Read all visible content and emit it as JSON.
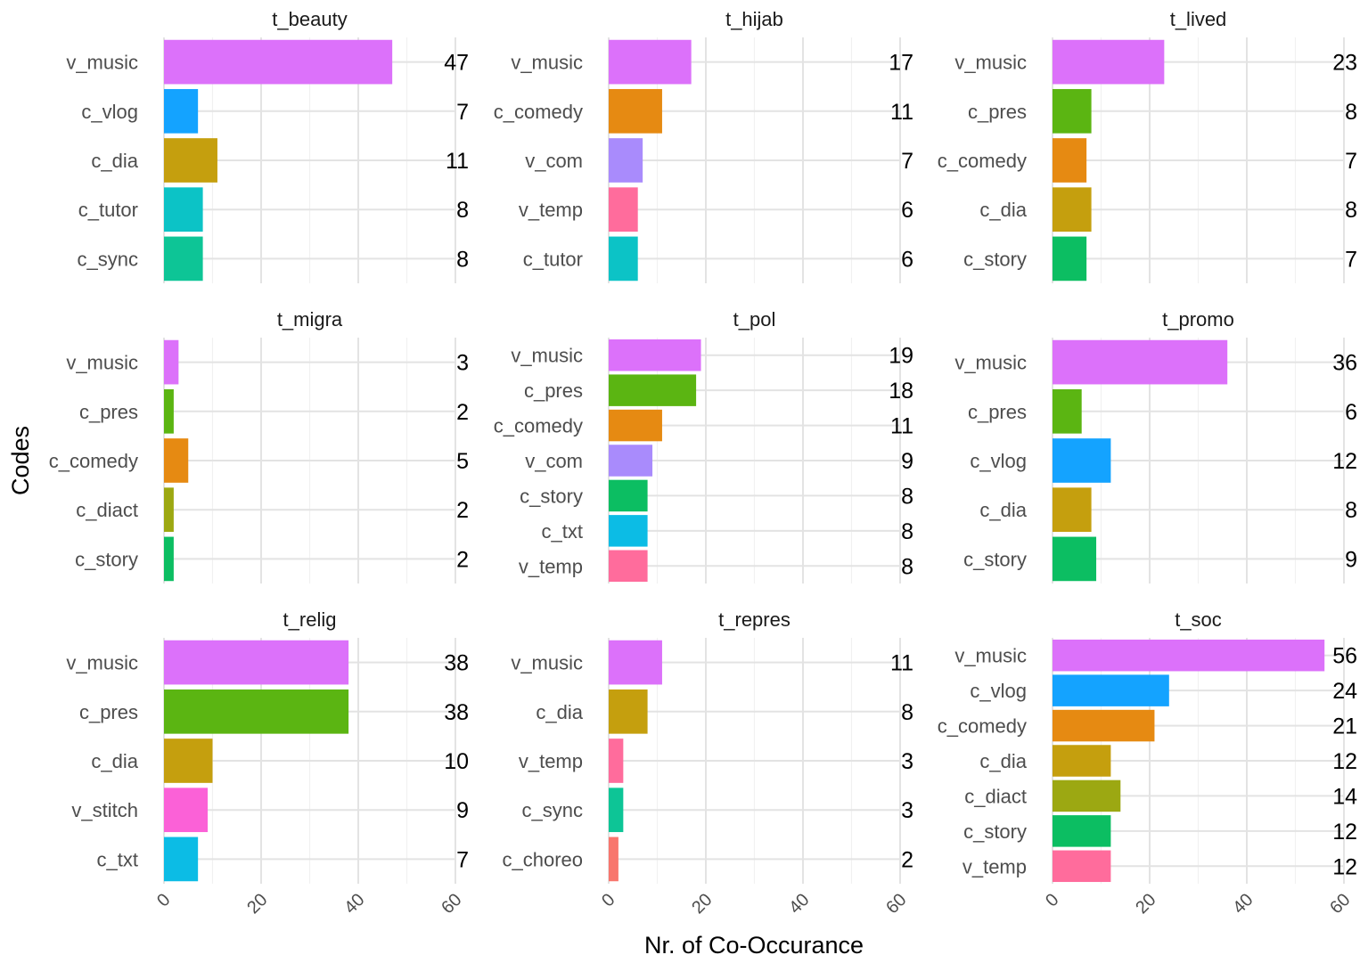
{
  "chart_data": {
    "type": "bar",
    "orientation": "horizontal",
    "facet_layout": "3x3",
    "xlabel": "Nr. of Co-Occurance",
    "ylabel": "Codes",
    "xlim": [
      0,
      60
    ],
    "xticks": [
      0,
      20,
      40,
      60
    ],
    "grid": true,
    "colors": {
      "v_music": "#DC71FA",
      "c_vlog": "#14A3FF",
      "c_dia": "#C59F0E",
      "c_tutor": "#0CC3C6",
      "c_sync": "#0DC596",
      "c_comedy": "#E68A12",
      "v_com": "#A98BFC",
      "v_temp": "#FF6C9C",
      "c_pres": "#5BB512",
      "c_story": "#0CBE62",
      "c_diact": "#9CA812",
      "c_txt": "#0CBCE5",
      "v_stitch": "#FB61D7",
      "c_choreo": "#F8766D"
    },
    "panels": [
      {
        "title": "t_beauty",
        "categories": [
          "v_music",
          "c_vlog",
          "c_dia",
          "c_tutor",
          "c_sync"
        ],
        "values": [
          47,
          7,
          11,
          8,
          8
        ]
      },
      {
        "title": "t_hijab",
        "categories": [
          "v_music",
          "c_comedy",
          "v_com",
          "v_temp",
          "c_tutor"
        ],
        "values": [
          17,
          11,
          7,
          6,
          6
        ]
      },
      {
        "title": "t_lived",
        "categories": [
          "v_music",
          "c_pres",
          "c_comedy",
          "c_dia",
          "c_story"
        ],
        "values": [
          23,
          8,
          7,
          8,
          7
        ]
      },
      {
        "title": "t_migra",
        "categories": [
          "v_music",
          "c_pres",
          "c_comedy",
          "c_diact",
          "c_story"
        ],
        "values": [
          3,
          2,
          5,
          2,
          2
        ]
      },
      {
        "title": "t_pol",
        "categories": [
          "v_music",
          "c_pres",
          "c_comedy",
          "v_com",
          "c_story",
          "c_txt",
          "v_temp"
        ],
        "values": [
          19,
          18,
          11,
          9,
          8,
          8,
          8
        ]
      },
      {
        "title": "t_promo",
        "categories": [
          "v_music",
          "c_pres",
          "c_vlog",
          "c_dia",
          "c_story"
        ],
        "values": [
          36,
          6,
          12,
          8,
          9
        ]
      },
      {
        "title": "t_relig",
        "categories": [
          "v_music",
          "c_pres",
          "c_dia",
          "v_stitch",
          "c_txt"
        ],
        "values": [
          38,
          38,
          10,
          9,
          7
        ]
      },
      {
        "title": "t_repres",
        "categories": [
          "v_music",
          "c_dia",
          "v_temp",
          "c_sync",
          "c_choreo"
        ],
        "values": [
          11,
          8,
          3,
          3,
          2
        ]
      },
      {
        "title": "t_soc",
        "categories": [
          "v_music",
          "c_vlog",
          "c_comedy",
          "c_dia",
          "c_diact",
          "c_story",
          "v_temp"
        ],
        "values": [
          56,
          24,
          21,
          12,
          14,
          12,
          12
        ]
      }
    ]
  }
}
